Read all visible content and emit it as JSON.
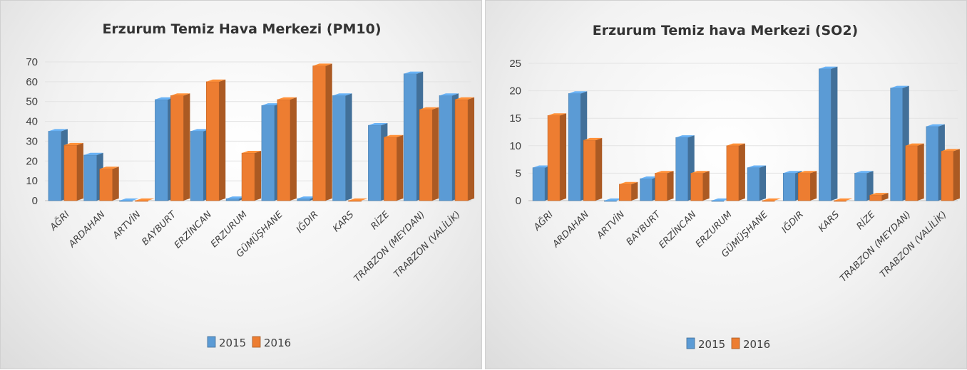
{
  "charts": [
    {
      "id": "pm10",
      "chart_data": {
        "type": "bar",
        "title": "Erzurum Temiz Hava Merkezi (PM10)",
        "categories": [
          "AĞRI",
          "ARDAHAN",
          "ARTVİN",
          "BAYBURT",
          "ERZİNCAN",
          "ERZURUM",
          "GÜMÜŞHANE",
          "IĞDIR",
          "KARS",
          "RİZE",
          "TRABZON (MEYDAN)",
          "TRABZON (VALİLİK)"
        ],
        "series": [
          {
            "name": "2015",
            "color": "#5b9bd5",
            "values": [
              35,
              23,
              0,
              51,
              35,
              1,
              48,
              1,
              53,
              38,
              64,
              53
            ]
          },
          {
            "name": "2016",
            "color": "#ed7d31",
            "values": [
              28,
              16,
              0,
              53,
              60,
              24,
              51,
              68,
              0,
              32,
              46,
              51
            ]
          }
        ],
        "ylim": [
          0,
          70
        ],
        "yticks": [
          0,
          10,
          20,
          30,
          40,
          50,
          60,
          70
        ],
        "legend": "bottom",
        "grid": true
      }
    },
    {
      "id": "so2",
      "chart_data": {
        "type": "bar",
        "title": "Erzurum Temiz hava Merkezi (SO2)",
        "categories": [
          "AĞRI",
          "ARDAHAN",
          "ARTVİN",
          "BAYBURT",
          "ERZİNCAN",
          "ERZURUM",
          "GÜMÜŞHANE",
          "IĞDIR",
          "KARS",
          "RİZE",
          "TRABZON (MEYDAN)",
          "TRABZON (VALİLİK)"
        ],
        "series": [
          {
            "name": "2015",
            "color": "#5b9bd5",
            "values": [
              6,
              19.5,
              0,
              4,
              11.5,
              0,
              6,
              5,
              24,
              5,
              20.5,
              13.5
            ]
          },
          {
            "name": "2016",
            "color": "#ed7d31",
            "values": [
              15.5,
              11,
              3,
              5,
              5,
              10,
              0,
              5,
              0,
              1,
              10,
              9
            ]
          }
        ],
        "ylim": [
          0,
          25
        ],
        "yticks": [
          0,
          5,
          10,
          15,
          20,
          25
        ],
        "legend": "bottom",
        "grid": true
      }
    }
  ]
}
